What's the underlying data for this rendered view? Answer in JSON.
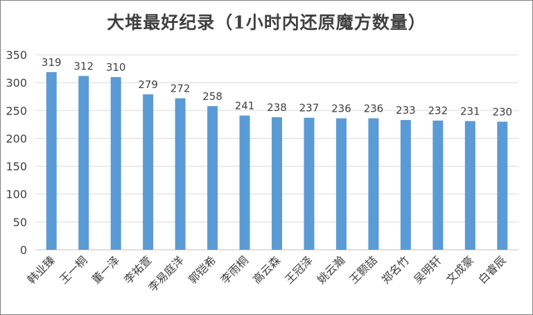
{
  "chart_data": {
    "type": "bar",
    "title": "大堆最好纪录（1小时内还原魔方数量）",
    "xlabel": "",
    "ylabel": "",
    "ylim": [
      0,
      350
    ],
    "yticks": [
      0,
      50,
      100,
      150,
      200,
      250,
      300,
      350
    ],
    "grid": true,
    "legend": "none",
    "bar_color": "#5b9bd5",
    "categories": [
      "韩业臻",
      "王一桐",
      "董一泽",
      "李祐萱",
      "李易庭洋",
      "郭铠希",
      "李雨桐",
      "高云森",
      "王冠泽",
      "姚云瀚",
      "王颢喆",
      "郑名竹",
      "吴明轩",
      "文成豪",
      "白睿辰"
    ],
    "values": [
      319,
      312,
      310,
      279,
      272,
      258,
      241,
      238,
      237,
      236,
      236,
      233,
      232,
      231,
      230
    ]
  }
}
